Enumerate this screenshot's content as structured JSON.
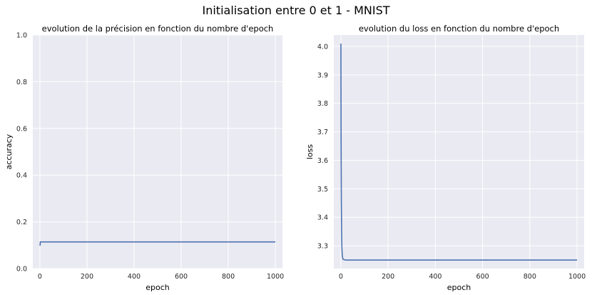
{
  "figure": {
    "title": "Initialisation entre 0 et 1 - MNIST"
  },
  "chart_data": [
    {
      "type": "line",
      "title": "evolution de la précision en fonction du nombre d'epoch",
      "xlabel": "epoch",
      "ylabel": "accuracy",
      "xlim": [
        -30,
        1030
      ],
      "ylim": [
        0.0,
        1.0
      ],
      "xticks": [
        0,
        200,
        400,
        600,
        800,
        1000
      ],
      "yticks": [
        0.0,
        0.2,
        0.4,
        0.6,
        0.8,
        1.0
      ],
      "xtick_labels": [
        "0",
        "200",
        "400",
        "600",
        "800",
        "1000"
      ],
      "ytick_labels": [
        "0.0",
        "0.2",
        "0.4",
        "0.6",
        "0.8",
        "1.0"
      ],
      "grid": true,
      "series": [
        {
          "color": "#4c72b0",
          "x": [
            0,
            1,
            2,
            3,
            5,
            10,
            50,
            100,
            200,
            400,
            600,
            800,
            1000
          ],
          "y": [
            0.098,
            0.1,
            0.114,
            0.114,
            0.114,
            0.114,
            0.114,
            0.114,
            0.114,
            0.114,
            0.114,
            0.114,
            0.114
          ]
        }
      ]
    },
    {
      "type": "line",
      "title": "evolution du loss en fonction du nombre d'epoch",
      "xlabel": "epoch",
      "ylabel": "loss",
      "xlim": [
        -30,
        1030
      ],
      "ylim": [
        3.22,
        4.04
      ],
      "xticks": [
        0,
        200,
        400,
        600,
        800,
        1000
      ],
      "yticks": [
        3.3,
        3.4,
        3.5,
        3.6,
        3.7,
        3.8,
        3.9,
        4.0
      ],
      "xtick_labels": [
        "0",
        "200",
        "400",
        "600",
        "800",
        "1000"
      ],
      "ytick_labels": [
        "3.3",
        "3.4",
        "3.5",
        "3.6",
        "3.7",
        "3.8",
        "3.9",
        "4.0"
      ],
      "grid": true,
      "series": [
        {
          "color": "#4c72b0",
          "x": [
            0,
            1,
            2,
            3,
            4,
            5,
            6,
            8,
            10,
            15,
            20,
            50,
            100,
            200,
            400,
            600,
            800,
            1000
          ],
          "y": [
            4.01,
            3.65,
            3.45,
            3.35,
            3.3,
            3.28,
            3.265,
            3.255,
            3.252,
            3.251,
            3.25,
            3.25,
            3.25,
            3.25,
            3.25,
            3.25,
            3.25,
            3.25
          ]
        }
      ]
    }
  ]
}
